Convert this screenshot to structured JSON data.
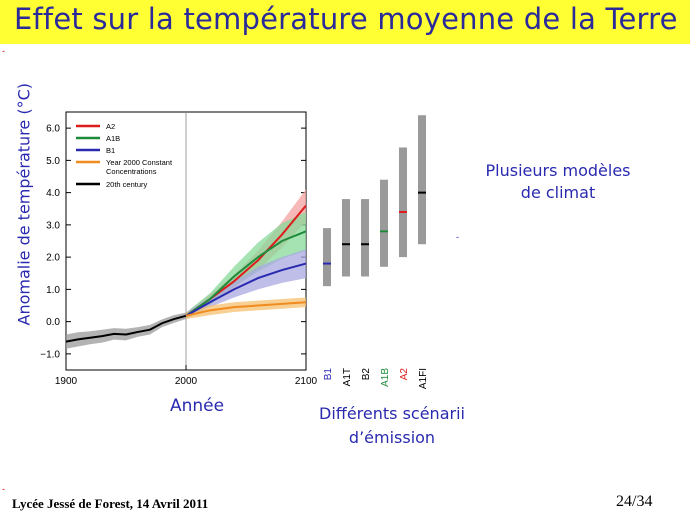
{
  "slide": {
    "title": "Effet sur la température moyenne de la Terre",
    "side_note_1": "Plusieurs modèles de climat",
    "side_note_2": "Différents scénarii d’émission",
    "footer": "Lycée Jessé de Forest, 14 Avril 2011",
    "page": "24/34"
  },
  "chart_data": {
    "type": "line",
    "ylabel": "Anomalie de température (°C)",
    "xlabel": "Année",
    "xlim": [
      1900,
      2100
    ],
    "ylim": [
      -1.5,
      6.5
    ],
    "x_ticks": [
      "1900",
      "2000",
      "2100"
    ],
    "y_ticks": [
      "−1.0",
      "0.0",
      "1.0",
      "2.0",
      "3.0",
      "4.0",
      "5.0",
      "6.0"
    ],
    "legend_position": "top-left",
    "legend": [
      "A2",
      "A1B",
      "B1",
      "Year 2000 Constant Concentrations",
      "20th century"
    ],
    "colors": {
      "A2": "#dd1c1c",
      "A1B": "#1f8a3a",
      "B1": "#2a2ab0",
      "Y2000": "#f08c1e",
      "C20": "#000000"
    },
    "series": [
      {
        "name": "20th century",
        "x": [
          1900,
          1910,
          1920,
          1930,
          1940,
          1950,
          1960,
          1970,
          1980,
          1990,
          2000
        ],
        "y": [
          -0.62,
          -0.55,
          -0.5,
          -0.45,
          -0.38,
          -0.4,
          -0.32,
          -0.25,
          -0.05,
          0.08,
          0.18
        ],
        "band": [
          0.22,
          0.22,
          0.2,
          0.2,
          0.18,
          0.18,
          0.15,
          0.15,
          0.12,
          0.12,
          0.1
        ]
      },
      {
        "name": "A2",
        "x": [
          2000,
          2020,
          2040,
          2060,
          2080,
          2100
        ],
        "y": [
          0.18,
          0.7,
          1.25,
          1.9,
          2.7,
          3.6
        ],
        "band": [
          0.1,
          0.15,
          0.2,
          0.3,
          0.4,
          0.5
        ]
      },
      {
        "name": "A1B",
        "x": [
          2000,
          2020,
          2040,
          2060,
          2080,
          2100
        ],
        "y": [
          0.18,
          0.7,
          1.4,
          2.0,
          2.5,
          2.8
        ],
        "band": [
          0.1,
          0.18,
          0.3,
          0.45,
          0.55,
          0.6
        ]
      },
      {
        "name": "B1",
        "x": [
          2000,
          2020,
          2040,
          2060,
          2080,
          2100
        ],
        "y": [
          0.18,
          0.6,
          1.0,
          1.35,
          1.6,
          1.8
        ],
        "band": [
          0.1,
          0.15,
          0.25,
          0.35,
          0.4,
          0.45
        ]
      },
      {
        "name": "Year 2000 Constant Concentrations",
        "x": [
          2000,
          2020,
          2040,
          2060,
          2080,
          2100
        ],
        "y": [
          0.18,
          0.35,
          0.45,
          0.5,
          0.55,
          0.6
        ],
        "band": [
          0.1,
          0.15,
          0.15,
          0.15,
          0.15,
          0.15
        ]
      }
    ],
    "ranges": [
      {
        "name": "B1",
        "low": 1.1,
        "high": 2.9,
        "best": 1.8
      },
      {
        "name": "A1T",
        "low": 1.4,
        "high": 3.8,
        "best": 2.4
      },
      {
        "name": "B2",
        "low": 1.4,
        "high": 3.8,
        "best": 2.4
      },
      {
        "name": "A1B",
        "low": 1.7,
        "high": 4.4,
        "best": 2.8
      },
      {
        "name": "A2",
        "low": 2.0,
        "high": 5.4,
        "best": 3.4
      },
      {
        "name": "A1FI",
        "low": 2.4,
        "high": 6.4,
        "best": 4.0
      }
    ]
  }
}
